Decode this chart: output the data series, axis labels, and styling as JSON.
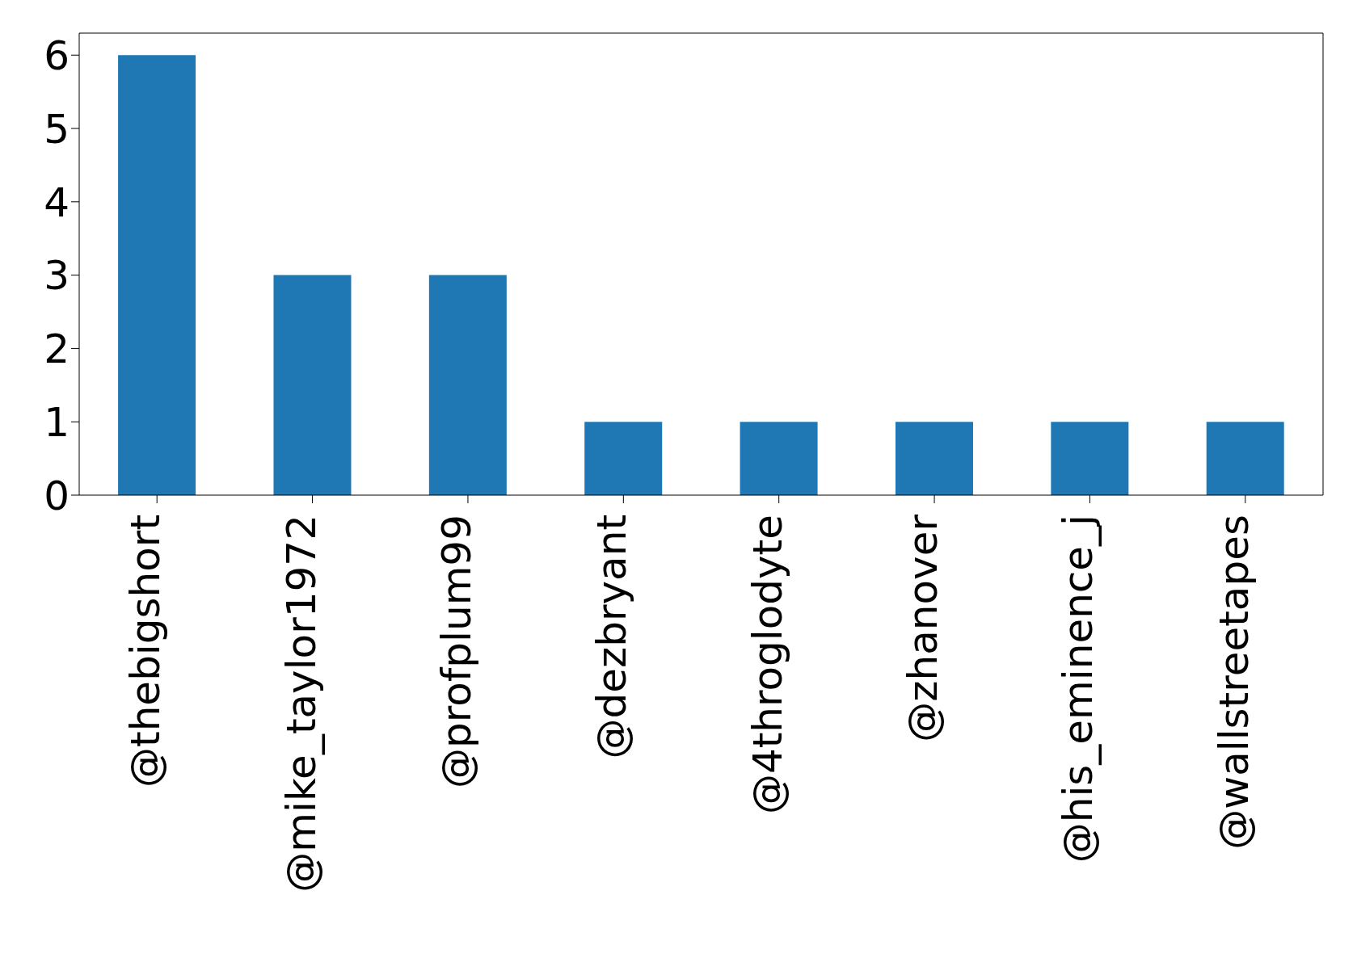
{
  "chart_data": {
    "type": "bar",
    "categories": [
      "@thebigshort",
      "@mike_taylor1972",
      "@profplum99",
      "@dezbryant",
      "@4throglodyte",
      "@zhanover",
      "@his_eminence_j",
      "@wallstreetapes"
    ],
    "values": [
      6,
      3,
      3,
      1,
      1,
      1,
      1,
      1
    ],
    "color": "#1f77b4",
    "ylim": [
      0,
      6.3
    ],
    "yticks": [
      0,
      1,
      2,
      3,
      4,
      5,
      6
    ],
    "grid": false
  }
}
